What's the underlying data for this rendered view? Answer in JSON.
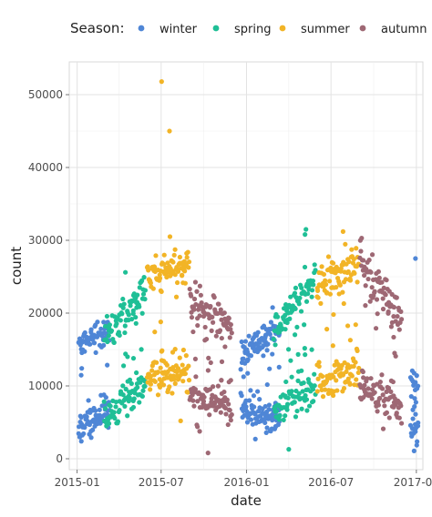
{
  "chart_data": {
    "type": "scatter",
    "title": "",
    "xlabel": "date",
    "ylabel": "count",
    "xlim": [
      "2014-12-15",
      "2017-01-15"
    ],
    "ylim": [
      -1500,
      54500
    ],
    "x_ticks": [
      "2015-01",
      "2015-07",
      "2016-01",
      "2016-07",
      "2017-01"
    ],
    "x_tick_dates": [
      "2015-01-01",
      "2015-07-01",
      "2016-01-01",
      "2016-07-01",
      "2017-01-01"
    ],
    "y_ticks": [
      0,
      10000,
      20000,
      30000,
      40000,
      50000
    ],
    "y_tick_labels": [
      "0",
      "10000",
      "20000",
      "30000",
      "40000",
      "50000"
    ],
    "grid": true,
    "legend": {
      "title": "Season:",
      "position": "top",
      "entries": [
        "winter",
        "spring",
        "summer",
        "autumn"
      ]
    },
    "series": [
      {
        "name": "winter",
        "color": "#4f86d6",
        "clusters": [
          {
            "start": "2015-01-04",
            "end": "2015-03-12",
            "low_start": 4500,
            "low_end": 6500,
            "high_start": 16000,
            "high_end": 17500,
            "n": 62,
            "sd": 1000
          },
          {
            "start": "2015-12-20",
            "end": "2016-03-12",
            "low_start": 7000,
            "low_end": 5500,
            "high_start": 14500,
            "high_end": 17500,
            "n": 74,
            "sd": 1000
          },
          {
            "start": "2016-12-20",
            "end": "2017-01-04",
            "low_start": 3500,
            "low_end": 3500,
            "high_start": 9500,
            "high_end": 10500,
            "n": 14,
            "sd": 1200
          }
        ],
        "extra_points": [
          {
            "date": "2016-12-30",
            "value": 27500
          },
          {
            "date": "2015-01-10",
            "value": 2400
          },
          {
            "date": "2016-01-20",
            "value": 2700
          }
        ]
      },
      {
        "name": "spring",
        "color": "#1fbf96",
        "clusters": [
          {
            "start": "2015-03-01",
            "end": "2015-05-28",
            "low_start": 5500,
            "low_end": 10500,
            "high_start": 17000,
            "high_end": 23000,
            "n": 68,
            "sd": 1100
          },
          {
            "start": "2016-03-01",
            "end": "2016-05-28",
            "low_start": 6500,
            "low_end": 9500,
            "high_start": 17500,
            "high_end": 25500,
            "n": 68,
            "sd": 1200
          }
        ],
        "extra_points": [
          {
            "date": "2015-04-15",
            "value": 25600
          },
          {
            "date": "2016-05-08",
            "value": 31500
          },
          {
            "date": "2016-05-06",
            "value": 30800
          },
          {
            "date": "2016-04-01",
            "value": 1300
          }
        ]
      },
      {
        "name": "summer",
        "color": "#f2b426",
        "clusters": [
          {
            "start": "2015-06-01",
            "end": "2015-08-30",
            "low_start": 11000,
            "low_end": 11500,
            "high_start": 25000,
            "high_end": 27000,
            "n": 72,
            "sd": 1300
          },
          {
            "start": "2016-06-01",
            "end": "2016-08-30",
            "low_start": 10000,
            "low_end": 12500,
            "high_start": 23500,
            "high_end": 27000,
            "n": 72,
            "sd": 1300
          }
        ],
        "extra_points": [
          {
            "date": "2015-07-02",
            "value": 51800
          },
          {
            "date": "2015-07-19",
            "value": 45000
          },
          {
            "date": "2015-07-20",
            "value": 30500
          },
          {
            "date": "2016-07-27",
            "value": 31200
          },
          {
            "date": "2015-08-12",
            "value": 5200
          }
        ]
      },
      {
        "name": "autumn",
        "color": "#9e6874",
        "clusters": [
          {
            "start": "2015-09-01",
            "end": "2015-11-30",
            "low_start": 8500,
            "low_end": 7000,
            "high_start": 22000,
            "high_end": 18000,
            "n": 70,
            "sd": 1300
          },
          {
            "start": "2016-09-01",
            "end": "2016-11-30",
            "low_start": 10000,
            "low_end": 7000,
            "high_start": 28000,
            "high_end": 19000,
            "n": 70,
            "sd": 1300
          }
        ],
        "extra_points": [
          {
            "date": "2016-09-05",
            "value": 30300
          },
          {
            "date": "2015-10-10",
            "value": 800
          },
          {
            "date": "2016-11-15",
            "value": 14500
          }
        ]
      }
    ]
  }
}
